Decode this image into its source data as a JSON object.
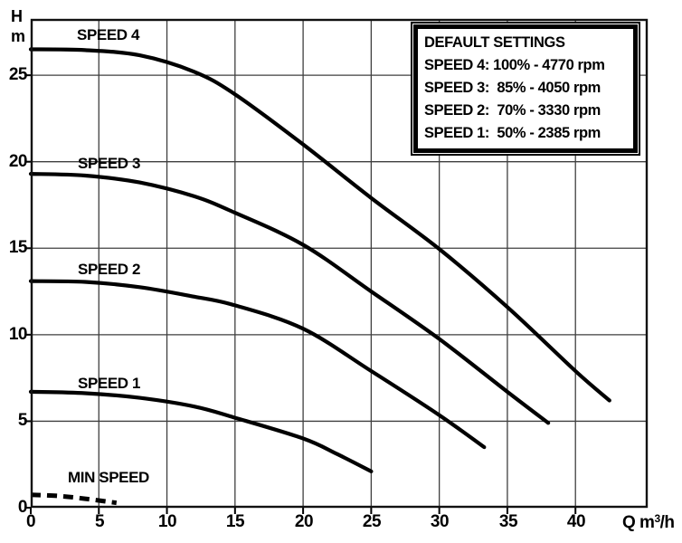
{
  "axes": {
    "y": {
      "label_line1": "H",
      "label_line2": "m",
      "ticks": [
        "25",
        "20",
        "15",
        "10",
        "5",
        "0"
      ]
    },
    "x": {
      "label_q": "Q m",
      "label_sup": "3",
      "label_unit": "/h",
      "ticks": [
        "0",
        "5",
        "10",
        "15",
        "20",
        "25",
        "30",
        "35",
        "40"
      ]
    }
  },
  "curve_labels": {
    "speed4": "SPEED 4",
    "speed3": "SPEED 3",
    "speed2": "SPEED 2",
    "speed1": "SPEED 1",
    "min": "MIN SPEED"
  },
  "legend": {
    "title": "DEFAULT SETTINGS",
    "lines": [
      "SPEED 4: 100% - 4770 rpm",
      "SPEED 3:  85% - 4050 rpm",
      "SPEED 2:  70% - 3330 rpm",
      "SPEED 1:  50% - 2385 rpm"
    ]
  },
  "colors": {
    "curve": "#000000",
    "grid": "#3f3f3f",
    "frame": "#111111"
  },
  "chart_data": {
    "type": "line",
    "title": "Pump head vs flow curves at default speed settings",
    "xlabel": "Q m3/h",
    "ylabel": "H m",
    "xlim": [
      0,
      45.3
    ],
    "ylim": [
      0,
      28.25
    ],
    "x_ticks": [
      0,
      5,
      10,
      15,
      20,
      25,
      30,
      35,
      40
    ],
    "y_ticks": [
      0,
      5,
      10,
      15,
      20,
      25
    ],
    "grid": true,
    "legend_position": "top-right",
    "series": [
      {
        "name": "SPEED 4",
        "setting": "100% - 4770 rpm",
        "style": "solid",
        "points": [
          [
            0,
            26.5
          ],
          [
            4,
            26.45
          ],
          [
            8,
            26.15
          ],
          [
            12,
            25.2
          ],
          [
            15,
            23.9
          ],
          [
            20,
            21.0
          ],
          [
            25,
            17.9
          ],
          [
            30,
            14.95
          ],
          [
            35,
            11.6
          ],
          [
            40,
            7.9
          ],
          [
            42.5,
            6.2
          ]
        ]
      },
      {
        "name": "SPEED 3",
        "setting": "85% - 4050 rpm",
        "style": "solid",
        "points": [
          [
            0,
            19.3
          ],
          [
            4,
            19.2
          ],
          [
            8,
            18.8
          ],
          [
            12,
            18.0
          ],
          [
            15,
            17.05
          ],
          [
            20,
            15.2
          ],
          [
            25,
            12.5
          ],
          [
            30,
            9.75
          ],
          [
            35,
            6.7
          ],
          [
            38,
            4.9
          ]
        ]
      },
      {
        "name": "SPEED 2",
        "setting": "70% - 3330 rpm",
        "style": "solid",
        "points": [
          [
            0,
            13.1
          ],
          [
            4,
            13.05
          ],
          [
            8,
            12.75
          ],
          [
            12,
            12.2
          ],
          [
            15,
            11.7
          ],
          [
            20,
            10.35
          ],
          [
            25,
            7.9
          ],
          [
            30,
            5.35
          ],
          [
            33.3,
            3.5
          ]
        ]
      },
      {
        "name": "SPEED 1",
        "setting": "50% - 2385 rpm",
        "style": "solid",
        "points": [
          [
            0,
            6.7
          ],
          [
            4,
            6.62
          ],
          [
            8,
            6.35
          ],
          [
            12,
            5.85
          ],
          [
            15,
            5.2
          ],
          [
            20,
            4.0
          ],
          [
            22.5,
            3.1
          ],
          [
            25,
            2.1
          ]
        ]
      },
      {
        "name": "MIN SPEED",
        "setting": "",
        "style": "dashed",
        "points": [
          [
            0,
            0.75
          ],
          [
            2,
            0.68
          ],
          [
            4,
            0.52
          ],
          [
            6.3,
            0.28
          ]
        ]
      }
    ]
  }
}
